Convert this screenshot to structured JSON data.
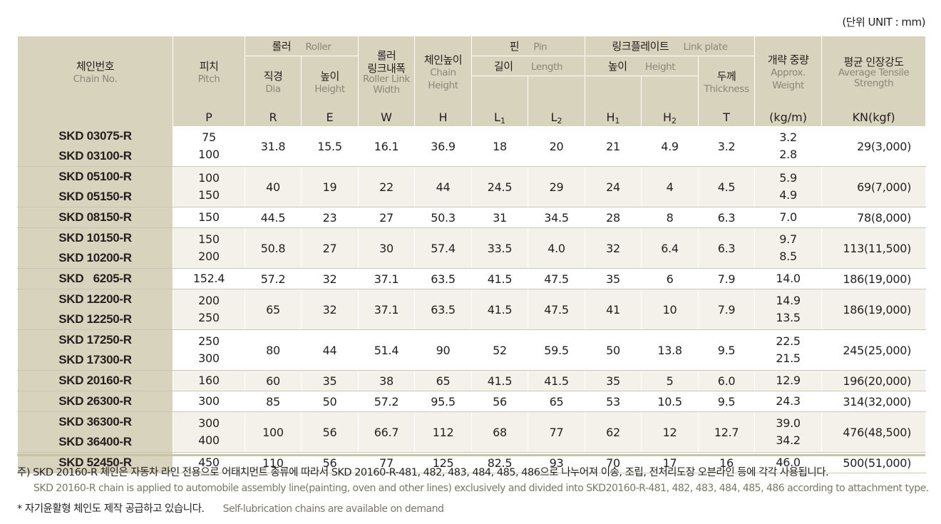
{
  "unit_label": "(단위 UNIT : mm)",
  "header": {
    "chain_no_ko": "체인번호",
    "chain_no_en": "Chain No.",
    "pitch_ko": "피치",
    "pitch_en": "Pitch",
    "pitch_sym": "P",
    "roller_ko": "롤러",
    "roller_en": "Roller",
    "dia_ko": "직경",
    "dia_en": "Dia",
    "dia_sym": "R",
    "rheight_ko": "높이",
    "rheight_en": "Height",
    "rheight_sym": "E",
    "rlw_ko1": "롤러",
    "rlw_ko2": "링크내폭",
    "rlw_en": "Roller Link Width",
    "rlw_sym": "W",
    "ch_ko": "체인높이",
    "ch_en": "Chain Height",
    "ch_sym": "H",
    "pin_ko": "핀",
    "pin_en": "Pin",
    "len_ko": "길이",
    "len_en": "Length",
    "l_sym": "L",
    "sub1": "1",
    "sub2": "2",
    "lp_ko": "링크플레이트",
    "lp_en": "Link plate",
    "lph_ko": "높이",
    "lph_en": "Height",
    "h_sym": "H",
    "th_ko": "두께",
    "th_en": "Thickness",
    "t_sym": "T",
    "wt_ko": "개략 중량",
    "wt_en": "Approx. Weight",
    "wt_unit": "(kg/m)",
    "ts_ko": "평균 인장강도",
    "ts_en": "Average Tensile Strength",
    "ts_unit": "KN(kgf)"
  },
  "rows": [
    {
      "names": [
        "SKD 03075-R",
        "SKD 03100-R"
      ],
      "pitch": [
        "75",
        "100"
      ],
      "dia": "31.8",
      "height": "15.5",
      "width": "16.1",
      "chain_height": "36.9",
      "l1": "18",
      "l2": "20",
      "h1": "21",
      "h2": "4.9",
      "t": "3.2",
      "weight": [
        "3.2",
        "2.8"
      ],
      "strength": "29(3,000)"
    },
    {
      "names": [
        "SKD 05100-R",
        "SKD 05150-R"
      ],
      "pitch": [
        "100",
        "150"
      ],
      "dia": "40",
      "height": "19",
      "width": "22",
      "chain_height": "44",
      "l1": "24.5",
      "l2": "29",
      "h1": "24",
      "h2": "4",
      "t": "4.5",
      "weight": [
        "5.9",
        "4.9"
      ],
      "strength": "69(7,000)"
    },
    {
      "names": [
        "SKD 08150-R"
      ],
      "pitch": [
        "150"
      ],
      "dia": "44.5",
      "height": "23",
      "width": "27",
      "chain_height": "50.3",
      "l1": "31",
      "l2": "34.5",
      "h1": "28",
      "h2": "8",
      "t": "6.3",
      "weight": [
        "7.0"
      ],
      "strength": "78(8,000)"
    },
    {
      "names": [
        "SKD 10150-R",
        "SKD 10200-R"
      ],
      "pitch": [
        "150",
        "200"
      ],
      "dia": "50.8",
      "height": "27",
      "width": "30",
      "chain_height": "57.4",
      "l1": "33.5",
      "l2": "4.0",
      "h1": "32",
      "h2": "6.4",
      "t": "6.3",
      "weight": [
        "9.7",
        "8.5"
      ],
      "strength": "113(11,500)"
    },
    {
      "names": [
        "SKD   6205-R"
      ],
      "pitch": [
        "152.4"
      ],
      "dia": "57.2",
      "height": "32",
      "width": "37.1",
      "chain_height": "63.5",
      "l1": "41.5",
      "l2": "47.5",
      "h1": "35",
      "h2": "6",
      "t": "7.9",
      "weight": [
        "14.0"
      ],
      "strength": "186(19,000)"
    },
    {
      "names": [
        "SKD 12200-R",
        "SKD 12250-R"
      ],
      "pitch": [
        "200",
        "250"
      ],
      "dia": "65",
      "height": "32",
      "width": "37.1",
      "chain_height": "63.5",
      "l1": "41.5",
      "l2": "47.5",
      "h1": "41",
      "h2": "10",
      "t": "7.9",
      "weight": [
        "14.9",
        "13.5"
      ],
      "strength": "186(19,000)"
    },
    {
      "names": [
        "SKD 17250-R",
        "SKD 17300-R"
      ],
      "pitch": [
        "250",
        "300"
      ],
      "dia": "80",
      "height": "44",
      "width": "51.4",
      "chain_height": "90",
      "l1": "52",
      "l2": "59.5",
      "h1": "50",
      "h2": "13.8",
      "t": "9.5",
      "weight": [
        "22.5",
        "21.5"
      ],
      "strength": "245(25,000)"
    },
    {
      "names": [
        "SKD 20160-R"
      ],
      "pitch": [
        "160"
      ],
      "dia": "60",
      "height": "35",
      "width": "38",
      "chain_height": "65",
      "l1": "41.5",
      "l2": "41.5",
      "h1": "35",
      "h2": "5",
      "t": "6.0",
      "weight": [
        "12.9"
      ],
      "strength": "196(20,000)"
    },
    {
      "names": [
        "SKD 26300-R"
      ],
      "pitch": [
        "300"
      ],
      "dia": "85",
      "height": "50",
      "width": "57.2",
      "chain_height": "95.5",
      "l1": "56",
      "l2": "65",
      "h1": "53",
      "h2": "10.5",
      "t": "9.5",
      "weight": [
        "24.3"
      ],
      "strength": "314(32,000)"
    },
    {
      "names": [
        "SKD 36300-R",
        "SKD 36400-R"
      ],
      "pitch": [
        "300",
        "400"
      ],
      "dia": "100",
      "height": "56",
      "width": "66.7",
      "chain_height": "112",
      "l1": "68",
      "l2": "77",
      "h1": "62",
      "h2": "12",
      "t": "12.7",
      "weight": [
        "39.0",
        "34.2"
      ],
      "strength": "476(48,500)"
    },
    {
      "names": [
        "SKD 52450-R"
      ],
      "pitch": [
        "450"
      ],
      "dia": "110",
      "height": "56",
      "width": "77",
      "chain_height": "125",
      "l1": "82.5",
      "l2": "93",
      "h1": "70",
      "h2": "17",
      "t": "16",
      "weight": [
        "46.0"
      ],
      "strength": "500(51,000)"
    }
  ],
  "notes": {
    "ko_main": "주) SKD 20160-R 체인은 자동차 라인 전용으로 어태치먼트 종류에 따라서 SKD 20160-R-481, 482, 483, 484, 485, 486으로 나누어져 이송, 조립, 전처리도장 오븐라인 등에 각각 사용됩니다.",
    "en_main": "SKD 20160-R chain is applied to automobile assembly line(painting, oven and other lines) exclusively and divided into SKD20160-R-481, 482, 483, 484, 485, 486 according to attachment type.",
    "ko_self": "* 자기윤활형 체인도 제작 공급하고 있습니다.",
    "en_self": "Self-lubrication chains are available on demand"
  }
}
